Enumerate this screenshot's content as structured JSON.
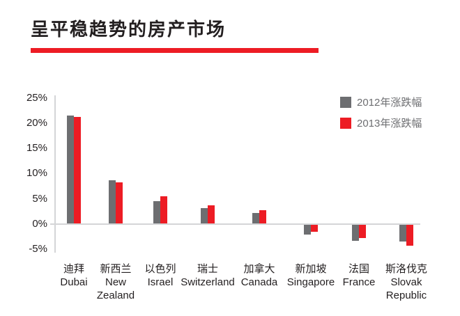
{
  "title": "呈平稳趋势的房产市场",
  "colors": {
    "accent_red": "#ed1c24",
    "bar_gray": "#6d6e71",
    "axis_gray": "#d4d5d7",
    "text_dark": "#231f20",
    "legend_text": "#6d6e71"
  },
  "chart_data": {
    "type": "bar",
    "title": "呈平稳趋势的房产市场",
    "categories": [
      {
        "zh": "迪拜",
        "en": "Dubai"
      },
      {
        "zh": "新西兰",
        "en": "New\nZealand"
      },
      {
        "zh": "以色列",
        "en": "Israel"
      },
      {
        "zh": "瑞士",
        "en": "Switzerland"
      },
      {
        "zh": "加拿大",
        "en": "Canada"
      },
      {
        "zh": "新加坡",
        "en": "Singapore"
      },
      {
        "zh": "法国",
        "en": "France"
      },
      {
        "zh": "斯洛伐克",
        "en": "Slovak\nRepublic"
      }
    ],
    "series": [
      {
        "name": "2012年涨跌幅",
        "color": "#6d6e71",
        "values": [
          21.5,
          8.7,
          4.6,
          3.1,
          2.2,
          -2.0,
          -3.3,
          -3.4
        ]
      },
      {
        "name": "2013年涨跌幅",
        "color": "#ed1c24",
        "values": [
          21.2,
          8.2,
          5.5,
          3.7,
          2.7,
          -1.5,
          -2.7,
          -4.3
        ]
      }
    ],
    "xlabel": "",
    "ylabel": "",
    "y_ticks": [
      "25%",
      "20%",
      "15%",
      "10%",
      "5%",
      "0%",
      "-5%"
    ],
    "y_tick_values": [
      25,
      20,
      15,
      10,
      5,
      0,
      -5
    ],
    "ylim": [
      -5,
      25
    ],
    "grid": false,
    "legend_position": "top-right"
  }
}
